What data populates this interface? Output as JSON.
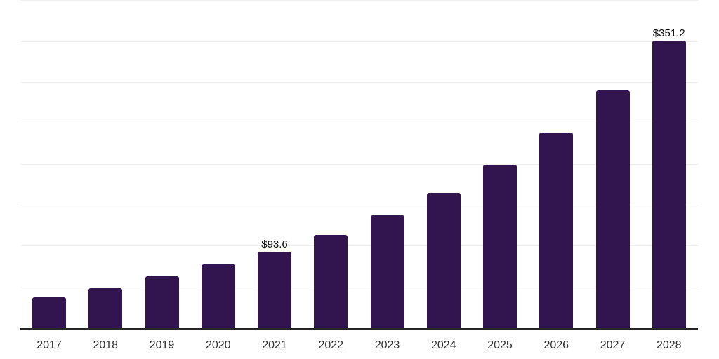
{
  "chart_data": {
    "type": "bar",
    "title": "",
    "xlabel": "",
    "ylabel": "",
    "categories": [
      "2017",
      "2018",
      "2019",
      "2020",
      "2021",
      "2022",
      "2023",
      "2024",
      "2025",
      "2026",
      "2027",
      "2028"
    ],
    "values": [
      37.8,
      48.9,
      63.0,
      78.0,
      93.6,
      113.9,
      138.3,
      165.1,
      199.3,
      239.5,
      290.5,
      351.2
    ],
    "data_labels": [
      "",
      "",
      "",
      "",
      "$93.6",
      "",
      "",
      "",
      "",
      "",
      "",
      "$351.2"
    ],
    "ylim": [
      0,
      400
    ],
    "gridline_step": 50,
    "grid": true,
    "legend": "none",
    "colors": {
      "bar": "#32154E",
      "gridline": "#f0f0f0",
      "axis_line": "#262626",
      "tick_label": "#333333",
      "data_label": "#111111",
      "background": "#ffffff"
    }
  }
}
